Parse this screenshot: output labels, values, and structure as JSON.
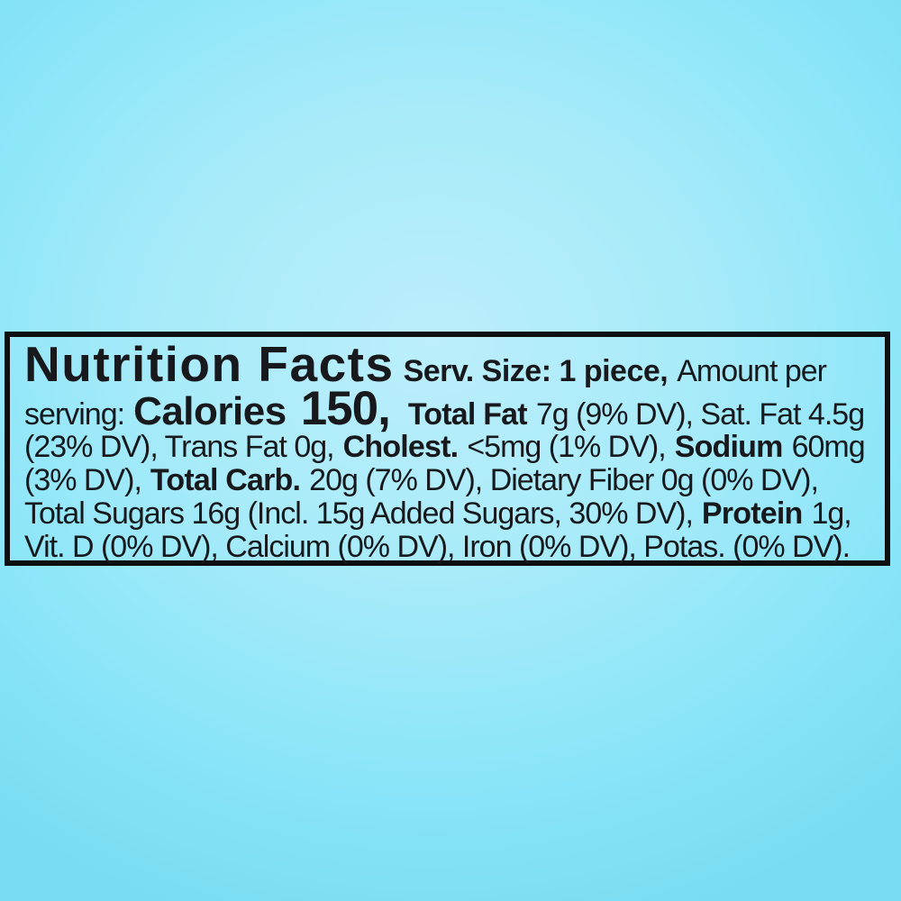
{
  "page": {
    "background_center_color": "#bceefb",
    "background_edge_color": "#79dcf0",
    "text_color": "#17191d",
    "box_border_color": "#0e0f11"
  },
  "nutrition_label": {
    "lines": [
      {
        "segments": [
          {
            "text": "Nutrition Facts"
          },
          {
            "text": "Serv. Size: 1 piece,"
          },
          {
            "text": "Amount per"
          }
        ]
      },
      {
        "segments": [
          {
            "text": "serving:"
          },
          {
            "text": "Calories"
          },
          {
            "text": "150,"
          },
          {
            "text": "Total Fat"
          },
          {
            "text": "7g (9% DV), Sat. Fat 4.5g"
          }
        ]
      },
      {
        "segments": [
          {
            "text": "(23% DV), Trans Fat 0g,"
          },
          {
            "text": "Cholest."
          },
          {
            "text": "<5mg (1% DV),"
          },
          {
            "text": "Sodium"
          },
          {
            "text": "60mg"
          }
        ]
      },
      {
        "segments": [
          {
            "text": "(3% DV),"
          },
          {
            "text": "Total Carb."
          },
          {
            "text": "20g (7% DV), Dietary Fiber 0g (0% DV),"
          }
        ]
      },
      {
        "segments": [
          {
            "text": "Total Sugars 16g (Incl. 15g Added Sugars, 30% DV),"
          },
          {
            "text": "Protein"
          },
          {
            "text": "1g,"
          }
        ]
      },
      {
        "segments": [
          {
            "text": "Vit. D (0% DV), Calcium (0% DV), Iron (0% DV), Potas. (0% DV)."
          }
        ]
      }
    ],
    "values": {
      "serving_size": "1 piece",
      "calories": "150",
      "total_fat": "7g (9% DV)",
      "saturated_fat": "4.5g (23% DV)",
      "trans_fat": "0g",
      "cholesterol": "<5mg (1% DV)",
      "sodium": "60mg (3% DV)",
      "total_carbohydrate": "20g (7% DV)",
      "dietary_fiber": "0g (0% DV)",
      "total_sugars": "16g",
      "added_sugars": "15g (30% DV)",
      "protein": "1g",
      "vitamin_d": "0% DV",
      "calcium": "0% DV",
      "iron": "0% DV",
      "potassium": "0% DV"
    }
  }
}
